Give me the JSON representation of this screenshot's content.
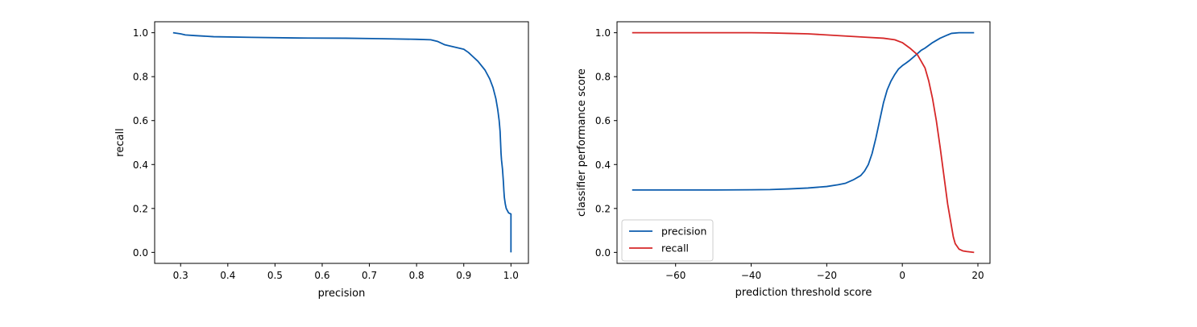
{
  "chart_data": [
    {
      "type": "line",
      "xlabel": "precision",
      "ylabel": "recall",
      "xlim": [
        0.245,
        1.037
      ],
      "ylim": [
        -0.05,
        1.05
      ],
      "xticks": [
        0.3,
        0.4,
        0.5,
        0.6,
        0.7,
        0.8,
        0.9,
        1.0
      ],
      "xtick_labels": [
        "0.3",
        "0.4",
        "0.5",
        "0.6",
        "0.7",
        "0.8",
        "0.9",
        "1.0"
      ],
      "yticks": [
        0.0,
        0.2,
        0.4,
        0.6,
        0.8,
        1.0
      ],
      "ytick_labels": [
        "0.0",
        "0.2",
        "0.4",
        "0.6",
        "0.8",
        "1.0"
      ],
      "grid": false,
      "series": [
        {
          "color": "#0b5cad",
          "x": [
            0.284,
            0.3,
            0.31,
            0.33,
            0.37,
            0.45,
            0.55,
            0.65,
            0.72,
            0.8,
            0.83,
            0.845,
            0.86,
            0.88,
            0.9,
            0.91,
            0.92,
            0.93,
            0.945,
            0.955,
            0.962,
            0.968,
            0.972,
            0.975,
            0.977,
            0.978,
            0.979,
            0.98,
            0.982,
            0.984,
            0.985,
            0.986,
            0.988,
            0.99,
            0.995,
            1.0,
            1.0
          ],
          "y": [
            1.0,
            0.995,
            0.99,
            0.987,
            0.982,
            0.979,
            0.976,
            0.975,
            0.973,
            0.97,
            0.968,
            0.96,
            0.945,
            0.935,
            0.925,
            0.91,
            0.89,
            0.87,
            0.83,
            0.79,
            0.75,
            0.7,
            0.65,
            0.6,
            0.55,
            0.5,
            0.45,
            0.42,
            0.38,
            0.32,
            0.28,
            0.25,
            0.22,
            0.2,
            0.18,
            0.175,
            0.0
          ]
        }
      ]
    },
    {
      "type": "line",
      "xlabel": "prediction threshold score",
      "ylabel": "classifier performance score",
      "xlim": [
        -75.5,
        23.2
      ],
      "ylim": [
        -0.05,
        1.05
      ],
      "xticks": [
        -60,
        -40,
        -20,
        0,
        20
      ],
      "xtick_labels": [
        "−60",
        "−40",
        "−20",
        "0",
        "20"
      ],
      "yticks": [
        0.0,
        0.2,
        0.4,
        0.6,
        0.8,
        1.0
      ],
      "ytick_labels": [
        "0.0",
        "0.2",
        "0.4",
        "0.6",
        "0.8",
        "1.0"
      ],
      "grid": false,
      "legend_position": "lower-left",
      "series": [
        {
          "name": "precision",
          "color": "#0b5cad",
          "x": [
            -71.5,
            -60,
            -50,
            -40,
            -35,
            -30,
            -25,
            -20,
            -17,
            -15,
            -13,
            -11,
            -10,
            -9,
            -8,
            -7,
            -6,
            -5,
            -4,
            -3,
            -2,
            -1,
            0,
            1,
            2,
            3,
            4,
            5,
            6,
            8,
            10,
            12,
            13,
            15,
            17,
            19
          ],
          "y": [
            0.284,
            0.284,
            0.284,
            0.285,
            0.286,
            0.289,
            0.293,
            0.3,
            0.308,
            0.315,
            0.33,
            0.35,
            0.37,
            0.4,
            0.45,
            0.52,
            0.6,
            0.68,
            0.74,
            0.78,
            0.81,
            0.835,
            0.85,
            0.862,
            0.875,
            0.89,
            0.905,
            0.92,
            0.93,
            0.955,
            0.975,
            0.99,
            0.997,
            1.0,
            1.0,
            1.0
          ]
        },
        {
          "name": "recall",
          "color": "#d62728",
          "x": [
            -71.5,
            -60,
            -50,
            -40,
            -35,
            -30,
            -25,
            -20,
            -15,
            -10,
            -5,
            -2,
            0,
            2,
            4,
            5,
            6,
            7,
            8,
            9,
            10,
            11,
            12,
            13,
            13.5,
            14,
            15,
            16,
            17,
            19
          ],
          "y": [
            1.0,
            1.0,
            1.0,
            1.0,
            0.999,
            0.997,
            0.995,
            0.99,
            0.985,
            0.98,
            0.975,
            0.968,
            0.955,
            0.93,
            0.9,
            0.87,
            0.84,
            0.78,
            0.7,
            0.6,
            0.48,
            0.35,
            0.22,
            0.12,
            0.07,
            0.04,
            0.015,
            0.007,
            0.004,
            0.0
          ]
        }
      ]
    }
  ]
}
